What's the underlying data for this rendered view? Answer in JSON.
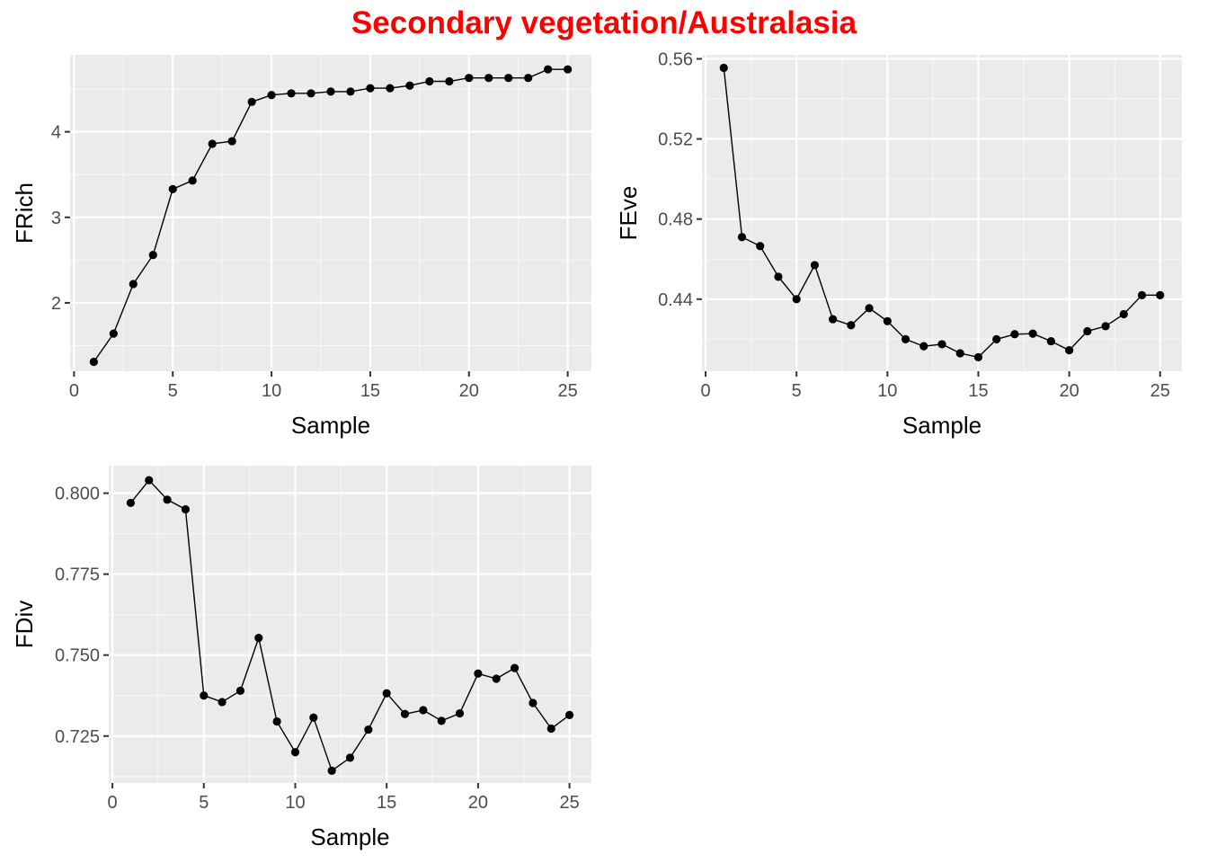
{
  "title": "Secondary vegetation/Australasia",
  "colors": {
    "title": "#ff0000",
    "panel_background": "#ebebeb",
    "grid_major": "#ffffff",
    "grid_minor": "#f7f7f7",
    "line": "#000000",
    "point": "#000000",
    "tick_label": "#4d4d4d",
    "tick_mark": "#333333"
  },
  "chart_data": [
    {
      "type": "line",
      "title": "",
      "xlabel": "Sample",
      "ylabel": "FRich",
      "xlim": [
        -0.2,
        26.2
      ],
      "ylim": [
        1.2,
        4.9
      ],
      "xticks": [
        0,
        5,
        10,
        15,
        20,
        25
      ],
      "yticks": [
        2,
        3,
        4
      ],
      "ytick_labels": [
        "2",
        "3",
        "4"
      ],
      "grid": true,
      "x": [
        1,
        2,
        3,
        4,
        5,
        6,
        7,
        8,
        9,
        10,
        11,
        12,
        13,
        14,
        15,
        16,
        17,
        18,
        19,
        20,
        21,
        22,
        23,
        24,
        25
      ],
      "y": [
        1.31,
        1.64,
        2.22,
        2.56,
        3.33,
        3.43,
        3.86,
        3.89,
        4.35,
        4.43,
        4.45,
        4.45,
        4.47,
        4.47,
        4.51,
        4.51,
        4.54,
        4.59,
        4.59,
        4.63,
        4.63,
        4.63,
        4.63,
        4.73,
        4.73
      ]
    },
    {
      "type": "line",
      "title": "",
      "xlabel": "Sample",
      "ylabel": "FEve",
      "xlim": [
        -0.2,
        26.2
      ],
      "ylim": [
        0.404,
        0.562
      ],
      "xticks": [
        0,
        5,
        10,
        15,
        20,
        25
      ],
      "yticks": [
        0.44,
        0.48,
        0.52,
        0.56
      ],
      "ytick_labels": [
        "0.44",
        "0.48",
        "0.52",
        "0.56"
      ],
      "grid": true,
      "x": [
        1,
        2,
        3,
        4,
        5,
        6,
        7,
        8,
        9,
        10,
        11,
        12,
        13,
        14,
        15,
        16,
        17,
        18,
        19,
        20,
        21,
        22,
        23,
        24,
        25
      ],
      "y": [
        0.5555,
        0.471,
        0.4665,
        0.4512,
        0.44,
        0.457,
        0.43,
        0.427,
        0.4355,
        0.429,
        0.42,
        0.4165,
        0.4175,
        0.413,
        0.411,
        0.42,
        0.4225,
        0.4228,
        0.419,
        0.4145,
        0.424,
        0.4265,
        0.4325,
        0.442,
        0.442
      ]
    },
    {
      "type": "line",
      "title": "",
      "xlabel": "Sample",
      "ylabel": "FDiv",
      "xlim": [
        -0.2,
        26.2
      ],
      "ylim": [
        0.7105,
        0.8085
      ],
      "xticks": [
        0,
        5,
        10,
        15,
        20,
        25
      ],
      "yticks": [
        0.725,
        0.75,
        0.775,
        0.8
      ],
      "ytick_labels": [
        "0.725",
        "0.750",
        "0.775",
        "0.800"
      ],
      "grid": true,
      "x": [
        1,
        2,
        3,
        4,
        5,
        6,
        7,
        8,
        9,
        10,
        11,
        12,
        13,
        14,
        15,
        16,
        17,
        18,
        19,
        20,
        21,
        22,
        23,
        24,
        25
      ],
      "y": [
        0.797,
        0.804,
        0.798,
        0.795,
        0.7375,
        0.7355,
        0.739,
        0.7553,
        0.7295,
        0.72,
        0.7307,
        0.7143,
        0.7183,
        0.727,
        0.7382,
        0.7318,
        0.733,
        0.7297,
        0.732,
        0.7443,
        0.7427,
        0.746,
        0.7352,
        0.7273,
        0.7315
      ]
    }
  ]
}
